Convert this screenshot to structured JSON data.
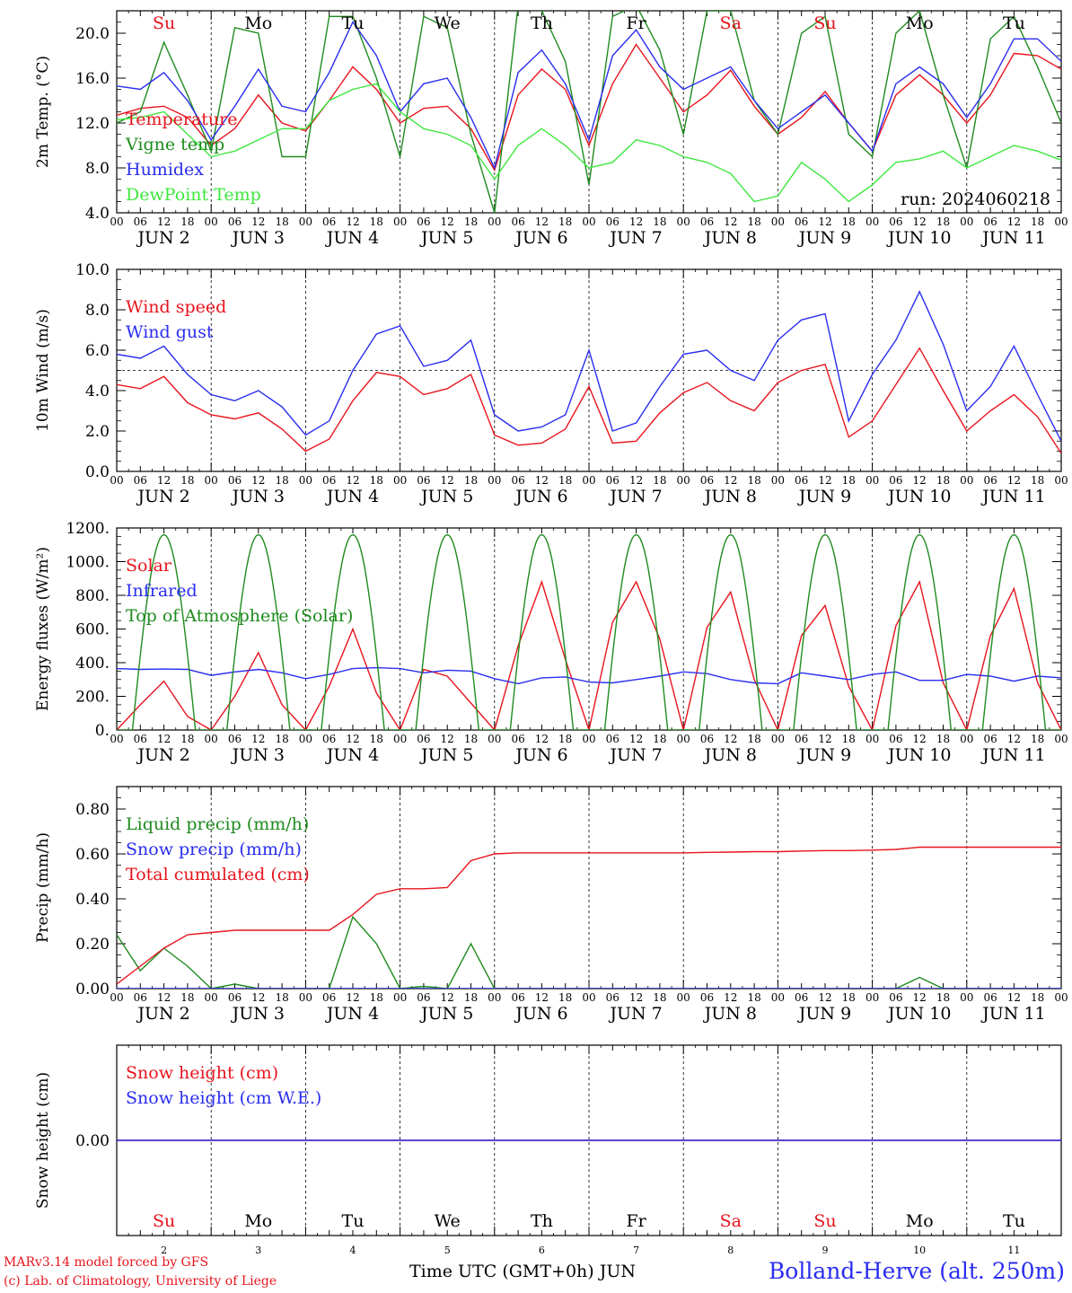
{
  "chart_data": [
    {
      "type": "line",
      "ylabel": "2m Temp. (°C)",
      "ylim": [
        4,
        22
      ],
      "yticks": [
        "4.0",
        "8.0",
        "12.0",
        "16.0",
        "20.0"
      ],
      "day_labels": [
        "Su",
        "Mo",
        "Tu",
        "We",
        "Th",
        "Fr",
        "Sa",
        "Su",
        "Mo",
        "Tu"
      ],
      "annotation": "run: 2024060218",
      "x_hours": [
        0,
        6,
        12,
        18,
        24,
        30,
        36,
        42,
        48,
        54,
        60,
        66,
        72,
        78,
        84,
        90,
        96,
        102,
        108,
        114,
        120,
        126,
        132,
        138,
        144,
        150,
        156,
        162,
        168,
        174,
        180,
        186,
        192,
        198,
        204,
        210,
        216,
        222,
        228,
        234,
        240
      ],
      "series": [
        {
          "name": "Temperature",
          "color": "#e8141d",
          "values": [
            12.7,
            13.3,
            13.5,
            12.5,
            10.0,
            11.5,
            14.5,
            12.0,
            11.3,
            14.0,
            17.0,
            15.0,
            12.0,
            13.3,
            13.5,
            11.5,
            7.8,
            14.5,
            16.8,
            15.0,
            10.0,
            15.5,
            19.0,
            16.0,
            13.0,
            14.5,
            16.7,
            13.5,
            11.0,
            12.5,
            14.8,
            12.0,
            9.5,
            14.5,
            16.3,
            14.5,
            12.0,
            14.5,
            18.2,
            18.0,
            16.8
          ]
        },
        {
          "name": "Vigne temp",
          "color": "#1e8b1e",
          "values": [
            12.0,
            13.0,
            19.2,
            14.5,
            9.5,
            20.5,
            20.0,
            9.0,
            9.0,
            21.5,
            21.5,
            16.0,
            9.0,
            21.5,
            20.5,
            11.0,
            4.0,
            22.5,
            22.0,
            17.5,
            6.5,
            21.5,
            22.5,
            18.5,
            11.0,
            22.0,
            22.0,
            14.0,
            11.0,
            20.0,
            21.5,
            11.0,
            9.0,
            20.0,
            22.0,
            14.5,
            8.0,
            19.5,
            21.5,
            17.0,
            12.0
          ]
        },
        {
          "name": "Humidex",
          "color": "#2a2df0",
          "values": [
            15.3,
            15.0,
            16.5,
            14.0,
            10.5,
            13.5,
            16.8,
            13.5,
            13.0,
            16.5,
            21.0,
            18.0,
            13.0,
            15.5,
            16.0,
            12.5,
            8.0,
            16.5,
            18.5,
            15.5,
            10.5,
            18.0,
            20.3,
            17.0,
            15.0,
            16.0,
            17.0,
            14.0,
            11.5,
            13.0,
            14.5,
            12.0,
            9.5,
            15.5,
            17.0,
            15.5,
            12.5,
            15.5,
            19.5,
            19.5,
            17.5
          ]
        },
        {
          "name": "DewPoint Temp",
          "color": "#3ee83e",
          "values": [
            12.3,
            12.5,
            13.0,
            11.0,
            9.0,
            9.5,
            10.5,
            11.5,
            11.5,
            14.0,
            15.0,
            15.5,
            13.0,
            11.5,
            11.0,
            10.0,
            7.0,
            10.0,
            11.5,
            10.0,
            8.0,
            8.5,
            10.5,
            10.0,
            9.0,
            8.5,
            7.5,
            5.0,
            5.5,
            8.5,
            7.0,
            5.0,
            6.5,
            8.5,
            8.8,
            9.5,
            8.0,
            9.0,
            10.0,
            9.5,
            8.7
          ]
        }
      ]
    },
    {
      "type": "line",
      "ylabel": "10m Wind (m/s)",
      "ylim": [
        0,
        10
      ],
      "yticks": [
        "0.0",
        "2.0",
        "4.0",
        "6.0",
        "8.0",
        "10.0"
      ],
      "ref_line": 5,
      "x_hours": [
        0,
        6,
        12,
        18,
        24,
        30,
        36,
        42,
        48,
        54,
        60,
        66,
        72,
        78,
        84,
        90,
        96,
        102,
        108,
        114,
        120,
        126,
        132,
        138,
        144,
        150,
        156,
        162,
        168,
        174,
        180,
        186,
        192,
        198,
        204,
        210,
        216,
        222,
        228,
        234,
        240
      ],
      "series": [
        {
          "name": "Wind speed",
          "color": "#e8141d",
          "values": [
            4.3,
            4.1,
            4.7,
            3.4,
            2.8,
            2.6,
            2.9,
            2.1,
            1.0,
            1.6,
            3.5,
            4.9,
            4.7,
            3.8,
            4.1,
            4.8,
            1.8,
            1.3,
            1.4,
            2.1,
            4.2,
            1.4,
            1.5,
            2.9,
            3.9,
            4.4,
            3.5,
            3.0,
            4.4,
            5.0,
            5.3,
            1.7,
            2.5,
            4.3,
            6.1,
            4.0,
            2.0,
            3.0,
            3.8,
            2.7,
            0.9
          ]
        },
        {
          "name": "Wind gust",
          "color": "#2a2df0",
          "values": [
            5.8,
            5.6,
            6.2,
            4.8,
            3.8,
            3.5,
            4.0,
            3.2,
            1.8,
            2.5,
            5.0,
            6.8,
            7.2,
            5.2,
            5.5,
            6.5,
            2.8,
            2.0,
            2.2,
            2.8,
            6.0,
            2.0,
            2.4,
            4.2,
            5.8,
            6.0,
            5.0,
            4.5,
            6.5,
            7.5,
            7.8,
            2.5,
            4.8,
            6.5,
            8.9,
            6.3,
            3.0,
            4.2,
            6.2,
            3.8,
            1.5
          ]
        }
      ]
    },
    {
      "type": "line",
      "ylabel": "Energy fluxes (W/m²)",
      "ylim": [
        0,
        1200
      ],
      "yticks": [
        "0.",
        "200.",
        "400.",
        "600.",
        "800.",
        "1000.",
        "1200."
      ],
      "x_hours": [
        0,
        6,
        12,
        18,
        24,
        30,
        36,
        42,
        48,
        54,
        60,
        66,
        72,
        78,
        84,
        90,
        96,
        102,
        108,
        114,
        120,
        126,
        132,
        138,
        144,
        150,
        156,
        162,
        168,
        174,
        180,
        186,
        192,
        198,
        204,
        210,
        216,
        222,
        228,
        234,
        240
      ],
      "series": [
        {
          "name": "Solar",
          "color": "#e8141d",
          "values": [
            0,
            150,
            290,
            80,
            0,
            200,
            460,
            150,
            0,
            260,
            600,
            220,
            0,
            360,
            320,
            160,
            0,
            500,
            880,
            420,
            0,
            640,
            880,
            540,
            0,
            610,
            820,
            300,
            0,
            560,
            740,
            260,
            0,
            620,
            880,
            280,
            0,
            560,
            840,
            280,
            0
          ]
        },
        {
          "name": "Infrared",
          "color": "#2a2df0",
          "values": [
            365,
            360,
            362,
            360,
            325,
            345,
            360,
            340,
            305,
            330,
            365,
            370,
            365,
            340,
            355,
            350,
            305,
            275,
            310,
            315,
            285,
            280,
            300,
            320,
            345,
            335,
            300,
            280,
            275,
            340,
            320,
            300,
            330,
            345,
            295,
            295,
            330,
            320,
            290,
            320,
            310
          ]
        },
        {
          "name": "Top of Atmosphere (Solar)",
          "color": "#1e8b1e",
          "period_hours": 24,
          "peak": 1160,
          "sunrise_hour": 4,
          "sunset_hour": 20
        }
      ]
    },
    {
      "type": "line",
      "ylabel": "Precip (mm/h)",
      "ylim": [
        0,
        0.9
      ],
      "yticks": [
        "0.00",
        "0.20",
        "0.40",
        "0.60",
        "0.80"
      ],
      "x_hours": [
        0,
        6,
        12,
        18,
        24,
        30,
        36,
        42,
        48,
        54,
        60,
        66,
        72,
        78,
        84,
        90,
        96,
        102,
        108,
        114,
        120,
        126,
        132,
        138,
        144,
        150,
        156,
        162,
        168,
        174,
        180,
        186,
        192,
        198,
        204,
        210,
        216,
        222,
        228,
        234,
        240
      ],
      "series": [
        {
          "name": "Liquid precip (mm/h)",
          "color": "#1e8b1e",
          "values": [
            0.24,
            0.08,
            0.18,
            0.1,
            0.0,
            0.02,
            0.0,
            0.0,
            0.0,
            0.0,
            0.32,
            0.2,
            0.0,
            0.01,
            0.0,
            0.2,
            0.0,
            0.0,
            0.0,
            0.0,
            0.0,
            0.0,
            0.0,
            0.0,
            0.0,
            0.0,
            0.0,
            0.0,
            0.0,
            0.0,
            0.0,
            0.0,
            0.0,
            0.0,
            0.05,
            0.0,
            0.0,
            0.0,
            0.0,
            0.0,
            0.0
          ]
        },
        {
          "name": "Snow precip (mm/h)",
          "color": "#2a2df0",
          "values": [
            0,
            0,
            0,
            0,
            0,
            0,
            0,
            0,
            0,
            0,
            0,
            0,
            0,
            0,
            0,
            0,
            0,
            0,
            0,
            0,
            0,
            0,
            0,
            0,
            0,
            0,
            0,
            0,
            0,
            0,
            0,
            0,
            0,
            0,
            0,
            0,
            0,
            0,
            0,
            0,
            0
          ]
        },
        {
          "name": "Total cumulated (cm)",
          "color": "#e8141d",
          "values": [
            0.02,
            0.1,
            0.18,
            0.24,
            0.25,
            0.26,
            0.26,
            0.26,
            0.26,
            0.26,
            0.33,
            0.42,
            0.445,
            0.445,
            0.45,
            0.57,
            0.6,
            0.605,
            0.605,
            0.605,
            0.605,
            0.605,
            0.605,
            0.605,
            0.605,
            0.607,
            0.608,
            0.61,
            0.61,
            0.613,
            0.615,
            0.615,
            0.617,
            0.62,
            0.63,
            0.63,
            0.63,
            0.63,
            0.63,
            0.63,
            0.63
          ]
        }
      ]
    },
    {
      "type": "line",
      "ylabel": "Snow height (cm)",
      "ylim": [
        -0.7,
        0.7
      ],
      "yticks": [
        "0.00"
      ],
      "day_labels": [
        "Su",
        "Mo",
        "Tu",
        "We",
        "Th",
        "Fr",
        "Sa",
        "Su",
        "Mo",
        "Tu"
      ],
      "day_numbers": [
        "2",
        "3",
        "4",
        "5",
        "6",
        "7",
        "8",
        "9",
        "10",
        "11"
      ],
      "series": [
        {
          "name": "Snow height (cm)",
          "color": "#e8141d",
          "values": [
            0,
            0
          ]
        },
        {
          "name": "Snow height (cm W.E.)",
          "color": "#2a2df0",
          "values": [
            0,
            0
          ]
        }
      ]
    }
  ],
  "hour_ticks": [
    "00",
    "06",
    "12",
    "18"
  ],
  "day_axis_labels": [
    "JUN  2",
    "JUN  3",
    "JUN  4",
    "JUN  5",
    "JUN  6",
    "JUN  7",
    "JUN  8",
    "JUN  9",
    "JUN 10",
    "JUN 11"
  ],
  "weekend_color": "#e8141d",
  "footer": {
    "model": "MARv3.14 model forced by GFS",
    "credit": "(c) Lab. of Climatology, University of Liege",
    "xlabel": "Time UTC (GMT+0h)",
    "month": "JUN",
    "station": "Bolland-Herve (alt. 250m)"
  }
}
